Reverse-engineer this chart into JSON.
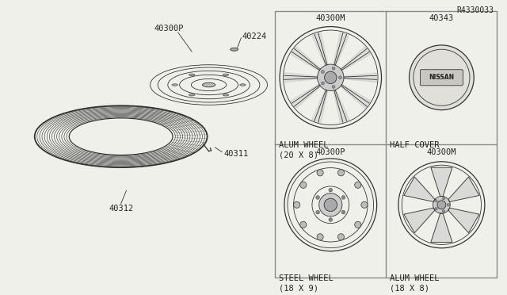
{
  "bg_color": "#f0f0eb",
  "line_color": "#333333",
  "divider_color": "#888888",
  "text_color": "#222222",
  "labels": {
    "tire": "40312",
    "valve": "40311",
    "wheel": "40300P",
    "lug": "40224",
    "steel_wheel_title": "STEEL WHEEL\n(18 X 9)",
    "steel_wheel_part": "40300P",
    "alum_wheel_top_title": "ALUM WHEEL\n(18 X 8)",
    "alum_wheel_top_part": "40300M",
    "alum_wheel_bot_title": "ALUM WHEEL\n(20 X 8)",
    "alum_wheel_bot_part": "40300M",
    "half_cover_title": "HALF COVER",
    "half_cover_part": "40343",
    "ref": "R4330033"
  }
}
